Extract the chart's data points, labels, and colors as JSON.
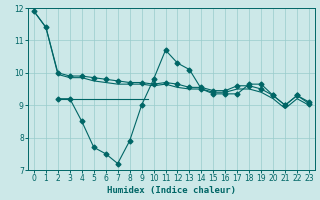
{
  "xlabel": "Humidex (Indice chaleur)",
  "bg_color": "#cce8e8",
  "grid_color": "#99cccc",
  "line_color": "#006666",
  "xlim": [
    -0.5,
    23.5
  ],
  "ylim": [
    7,
    12
  ],
  "xticks": [
    0,
    1,
    2,
    3,
    4,
    5,
    6,
    7,
    8,
    9,
    10,
    11,
    12,
    13,
    14,
    15,
    16,
    17,
    18,
    19,
    20,
    21,
    22,
    23
  ],
  "yticks": [
    7,
    8,
    9,
    10,
    11,
    12
  ],
  "line1_x": [
    0,
    1,
    2,
    3,
    4,
    5,
    6,
    7,
    8,
    9,
    10,
    11,
    12,
    13,
    14,
    15,
    16,
    17,
    18,
    19,
    20,
    21,
    22,
    23
  ],
  "line1_y": [
    11.9,
    11.4,
    10.0,
    9.9,
    9.9,
    9.85,
    9.8,
    9.75,
    9.7,
    9.7,
    9.65,
    9.7,
    9.65,
    9.55,
    9.55,
    9.45,
    9.45,
    9.6,
    9.6,
    9.5,
    9.3,
    9.0,
    9.3,
    9.1
  ],
  "line2_x": [
    0,
    1,
    2,
    3,
    4,
    5,
    6,
    7,
    8,
    9,
    10,
    11,
    12,
    13,
    14,
    15,
    16,
    17,
    18,
    19,
    20,
    21,
    22,
    23
  ],
  "line2_y": [
    11.9,
    11.4,
    9.95,
    9.85,
    9.85,
    9.75,
    9.7,
    9.65,
    9.65,
    9.65,
    9.6,
    9.65,
    9.55,
    9.5,
    9.5,
    9.4,
    9.4,
    9.5,
    9.5,
    9.4,
    9.2,
    8.9,
    9.2,
    9.0
  ],
  "line3_x": [
    2,
    3,
    4,
    5,
    6,
    7,
    8,
    9,
    10,
    11,
    12,
    13,
    14,
    15,
    16,
    17,
    18,
    19,
    20,
    21,
    22,
    23
  ],
  "line3_y": [
    9.2,
    9.2,
    8.5,
    7.7,
    7.5,
    7.2,
    7.9,
    9.0,
    9.8,
    10.7,
    10.3,
    10.1,
    9.5,
    9.35,
    9.35,
    9.35,
    9.65,
    9.65,
    9.3,
    9.0,
    9.3,
    9.05
  ],
  "flat_line_x": [
    2,
    9.5
  ],
  "flat_line_y": [
    9.2,
    9.2
  ],
  "markersize": 2.5
}
